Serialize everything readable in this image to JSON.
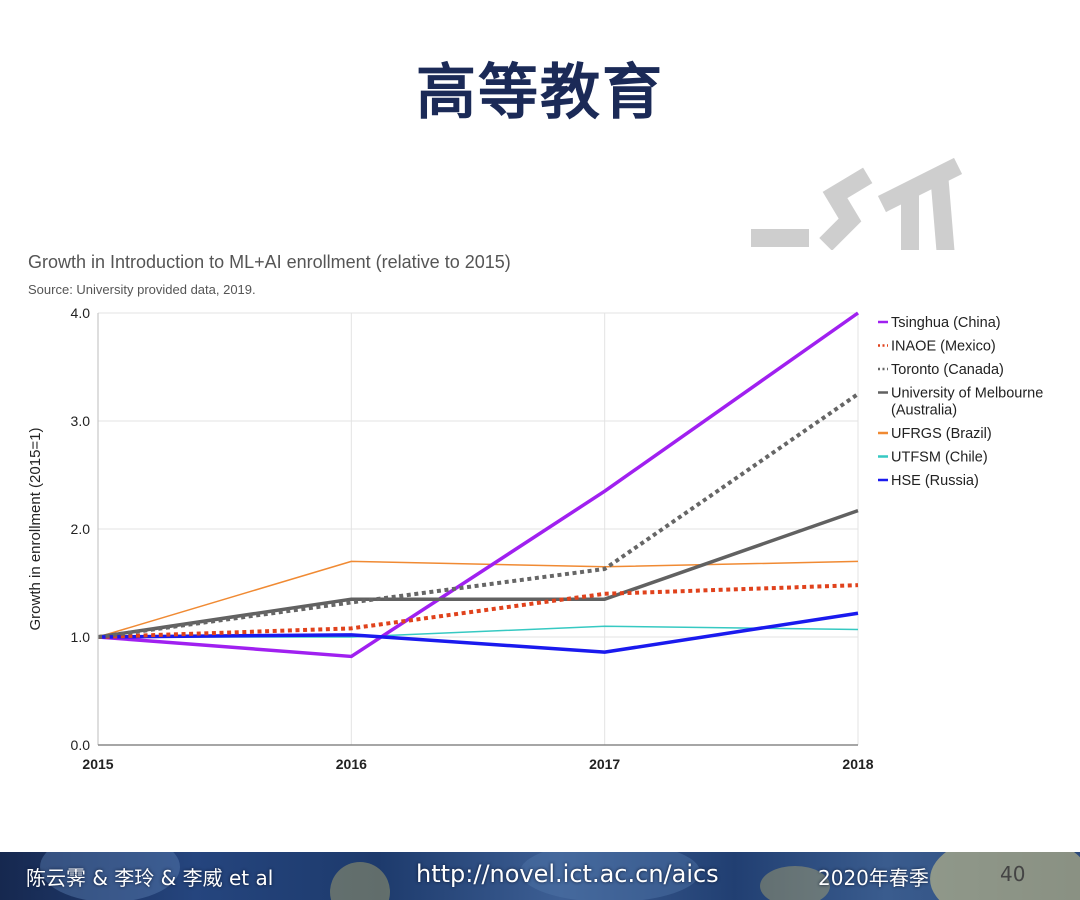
{
  "slide": {
    "title": "高等教育"
  },
  "chart_data": {
    "type": "line",
    "title": "Growth in Introduction to ML+AI enrollment (relative to 2015)",
    "subtitle": "Source: University provided data, 2019.",
    "xlabel": "",
    "ylabel": "Growth in enrollment (2015=1)",
    "x": [
      "2015",
      "2016",
      "2017",
      "2018"
    ],
    "ylim": [
      0,
      4
    ],
    "yticks": [
      "0.0",
      "1.0",
      "2.0",
      "3.0",
      "4.0"
    ],
    "grid": true,
    "legend_position": "right",
    "series": [
      {
        "name": "Tsinghua (China)",
        "values": [
          1.0,
          0.82,
          2.35,
          4.0
        ],
        "color": "#a020f0",
        "dash": "solid",
        "width": 3.5
      },
      {
        "name": "INAOE (Mexico)",
        "values": [
          1.0,
          1.08,
          1.4,
          1.48
        ],
        "color": "#e0421c",
        "dash": "dotted",
        "width": 4
      },
      {
        "name": "Toronto (Canada)",
        "values": [
          1.0,
          1.32,
          1.63,
          3.25
        ],
        "color": "#666666",
        "dash": "dotted",
        "width": 4
      },
      {
        "name": "University of Melbourne\n(Australia)",
        "values": [
          1.0,
          1.35,
          1.35,
          2.17
        ],
        "color": "#616161",
        "dash": "solid",
        "width": 3.5
      },
      {
        "name": "UFRGS (Brazil)",
        "values": [
          1.0,
          1.7,
          1.65,
          1.7
        ],
        "color": "#f08a33",
        "dash": "solid",
        "width": 1.5
      },
      {
        "name": "UTFSM (Chile)",
        "values": [
          1.0,
          1.0,
          1.1,
          1.07
        ],
        "color": "#36c9c2",
        "dash": "solid",
        "width": 1.5
      },
      {
        "name": "HSE (Russia)",
        "values": [
          1.0,
          1.02,
          0.86,
          1.22
        ],
        "color": "#1a1aee",
        "dash": "solid",
        "width": 3.5
      }
    ]
  },
  "footer": {
    "authors": "陈云霁 & 李玲 & 李威 et al",
    "url": "http://novel.ict.ac.cn/aics",
    "term": "2020年春季",
    "page": "40"
  },
  "colors": {
    "title": "#1b2a57",
    "footer_bg": "#213f72"
  }
}
